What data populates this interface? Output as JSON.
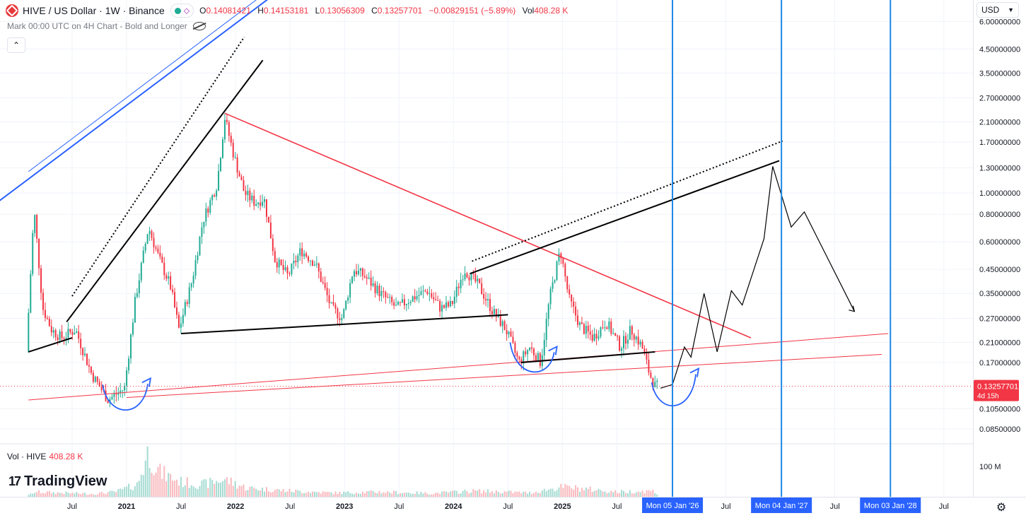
{
  "header": {
    "pair": "HIVE / US Dollar · 1W · Binance",
    "open_label": "O",
    "open": "0.14081421",
    "high_label": "H",
    "high": "0.14153181",
    "low_label": "L",
    "low": "0.13056309",
    "close_label": "C",
    "close": "0.13257701",
    "change": "−0.00829151 (−5.89%)",
    "vol_label": "Vol",
    "vol": "408.28 K"
  },
  "subheader": {
    "text": "Mark 00:00 UTC on 4H Chart - Bold and Longer"
  },
  "toolbar": {
    "collapse_glyph": "⌃",
    "currency": "USD"
  },
  "volume_legend": {
    "label": "Vol · HIVE",
    "value": "408.28 K"
  },
  "branding": {
    "logo_mark": "17",
    "logo_text": "TradingView"
  },
  "icons": {
    "gear": "gear-icon",
    "eye": "eye-crossed-icon",
    "collapse": "chevron-up-icon"
  },
  "colors": {
    "up": "#22ab94",
    "down": "#f23645",
    "red_line": "#f23645",
    "blue_line": "#2962ff",
    "vertical_line": "#1e88e5",
    "badge_price": "#f23645",
    "badge_date": "#2962ff"
  },
  "chart_data": {
    "type": "candlestick",
    "scale": "log",
    "y_ticks": [
      "6.00000000",
      "4.50000000",
      "3.50000000",
      "2.70000000",
      "2.10000000",
      "1.70000000",
      "1.30000000",
      "1.00000000",
      "0.80000000",
      "0.60000000",
      "0.45000000",
      "0.35000000",
      "0.27000000",
      "0.21000000",
      "0.17000000",
      "0.13257701",
      "0.10500000",
      "0.08500000"
    ],
    "y_tick_values": [
      6.0,
      4.5,
      3.5,
      2.7,
      2.1,
      1.7,
      1.3,
      1.0,
      0.8,
      0.6,
      0.45,
      0.35,
      0.27,
      0.21,
      0.17,
      0.105,
      0.085
    ],
    "current_price": {
      "value": 0.13257701,
      "label": "0.13257701",
      "countdown": "4d 15h"
    },
    "volume_tick": "100 M",
    "x_ticks": [
      {
        "label": "Jul",
        "year": 2020.5
      },
      {
        "label": "2021",
        "year": 2021.0
      },
      {
        "label": "Jul",
        "year": 2021.5
      },
      {
        "label": "2022",
        "year": 2022.0
      },
      {
        "label": "Jul",
        "year": 2022.5
      },
      {
        "label": "2023",
        "year": 2023.0
      },
      {
        "label": "Jul",
        "year": 2023.5
      },
      {
        "label": "2024",
        "year": 2024.0
      },
      {
        "label": "Jul",
        "year": 2024.5
      },
      {
        "label": "2025",
        "year": 2025.0
      },
      {
        "label": "Jul",
        "year": 2025.5
      },
      {
        "label": "Jul",
        "year": 2026.5
      },
      {
        "label": "Jul",
        "year": 2027.5
      },
      {
        "label": "Jul",
        "year": 2028.5
      }
    ],
    "date_markers": [
      {
        "label": "Mon 05 Jan '26",
        "year": 2026.01
      },
      {
        "label": "Mon 04 Jan '27",
        "year": 2027.01
      },
      {
        "label": "Mon 03 Jan '28",
        "year": 2028.01
      }
    ],
    "price_path": [
      [
        2020.1,
        0.19
      ],
      [
        2020.17,
        0.85
      ],
      [
        2020.25,
        0.3
      ],
      [
        2020.33,
        0.24
      ],
      [
        2020.42,
        0.22
      ],
      [
        2020.55,
        0.24
      ],
      [
        2020.7,
        0.15
      ],
      [
        2020.85,
        0.115
      ],
      [
        2021.0,
        0.13
      ],
      [
        2021.1,
        0.33
      ],
      [
        2021.22,
        0.7
      ],
      [
        2021.32,
        0.5
      ],
      [
        2021.42,
        0.38
      ],
      [
        2021.5,
        0.24
      ],
      [
        2021.62,
        0.4
      ],
      [
        2021.72,
        0.75
      ],
      [
        2021.85,
        1.1
      ],
      [
        2021.92,
        2.2
      ],
      [
        2022.0,
        1.5
      ],
      [
        2022.1,
        1.0
      ],
      [
        2022.2,
        0.9
      ],
      [
        2022.28,
        0.95
      ],
      [
        2022.38,
        0.5
      ],
      [
        2022.5,
        0.42
      ],
      [
        2022.62,
        0.55
      ],
      [
        2022.75,
        0.48
      ],
      [
        2022.9,
        0.3
      ],
      [
        2023.0,
        0.27
      ],
      [
        2023.1,
        0.45
      ],
      [
        2023.2,
        0.42
      ],
      [
        2023.35,
        0.35
      ],
      [
        2023.5,
        0.3
      ],
      [
        2023.62,
        0.33
      ],
      [
        2023.78,
        0.36
      ],
      [
        2023.9,
        0.3
      ],
      [
        2024.0,
        0.31
      ],
      [
        2024.12,
        0.45
      ],
      [
        2024.25,
        0.38
      ],
      [
        2024.38,
        0.29
      ],
      [
        2024.5,
        0.24
      ],
      [
        2024.62,
        0.17
      ],
      [
        2024.72,
        0.2
      ],
      [
        2024.82,
        0.17
      ],
      [
        2024.9,
        0.33
      ],
      [
        2025.0,
        0.55
      ],
      [
        2025.08,
        0.33
      ],
      [
        2025.18,
        0.25
      ],
      [
        2025.3,
        0.22
      ],
      [
        2025.42,
        0.26
      ],
      [
        2025.55,
        0.2
      ],
      [
        2025.65,
        0.24
      ],
      [
        2025.75,
        0.2
      ],
      [
        2025.82,
        0.15
      ],
      [
        2025.87,
        0.1326
      ]
    ],
    "volume_profile": [
      [
        2020.15,
        0.1
      ],
      [
        2020.4,
        0.08
      ],
      [
        2020.7,
        0.06
      ],
      [
        2020.9,
        0.1
      ],
      [
        2021.1,
        0.25
      ],
      [
        2021.2,
        0.9
      ],
      [
        2021.3,
        0.5
      ],
      [
        2021.5,
        0.3
      ],
      [
        2021.7,
        0.25
      ],
      [
        2021.9,
        0.35
      ],
      [
        2022.1,
        0.18
      ],
      [
        2022.5,
        0.12
      ],
      [
        2022.9,
        0.08
      ],
      [
        2023.3,
        0.1
      ],
      [
        2023.8,
        0.07
      ],
      [
        2024.2,
        0.12
      ],
      [
        2024.7,
        0.08
      ],
      [
        2025.0,
        0.2
      ],
      [
        2025.5,
        0.1
      ],
      [
        2025.85,
        0.12
      ]
    ],
    "projection_path": [
      [
        2025.9,
        0.13
      ],
      [
        2026.01,
        0.135
      ],
      [
        2026.12,
        0.2
      ],
      [
        2026.18,
        0.18
      ],
      [
        2026.3,
        0.35
      ],
      [
        2026.42,
        0.19
      ],
      [
        2026.55,
        0.36
      ],
      [
        2026.65,
        0.31
      ],
      [
        2026.85,
        0.62
      ],
      [
        2026.93,
        1.32
      ],
      [
        2027.1,
        0.7
      ],
      [
        2027.22,
        0.82
      ],
      [
        2027.68,
        0.29
      ]
    ]
  }
}
